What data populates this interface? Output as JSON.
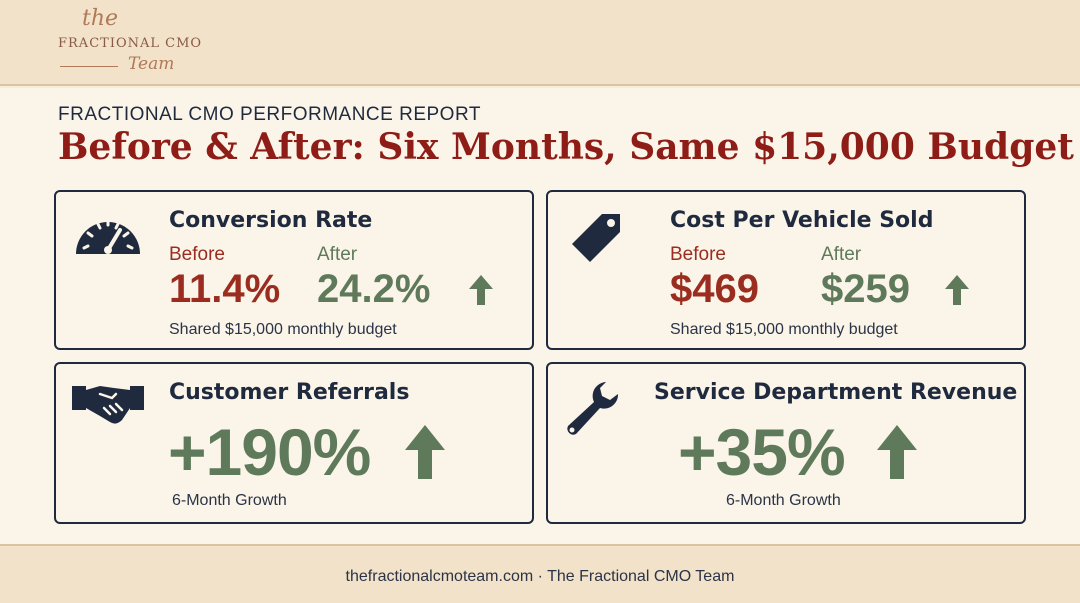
{
  "brand": {
    "script_top": "the",
    "name": "FRACTIONAL CMO",
    "script_bottom": "Team"
  },
  "report": {
    "eyebrow": "FRACTIONAL CMO PERFORMANCE REPORT",
    "headline": "Before & After: Six Months, Same $15,000 Budget"
  },
  "cards": [
    {
      "icon": "speedometer-icon",
      "title": "Conversion Rate",
      "before_label": "Before",
      "before_value": "11.4%",
      "after_label": "After",
      "after_value": "24.2%",
      "note": "Shared $15,000 monthly budget"
    },
    {
      "icon": "price-tag-icon",
      "title": "Cost Per Vehicle Sold",
      "before_label": "Before",
      "before_value": "$469",
      "after_label": "After",
      "after_value": "$259",
      "note": "Shared $15,000 monthly budget"
    },
    {
      "icon": "handshake-icon",
      "title": "Customer Referrals",
      "value": "+190%",
      "note": "6-Month Growth"
    },
    {
      "icon": "wrench-icon",
      "title": "Service Department Revenue",
      "value": "+35%",
      "note": "6-Month Growth"
    }
  ],
  "colors": {
    "before": "#9a2d1f",
    "after": "#5e7a5a",
    "headline": "#8e1d17",
    "ink": "#1f2a3f"
  },
  "footer": {
    "text": "thefractionalcmoteam.com · The Fractional CMO Team"
  }
}
